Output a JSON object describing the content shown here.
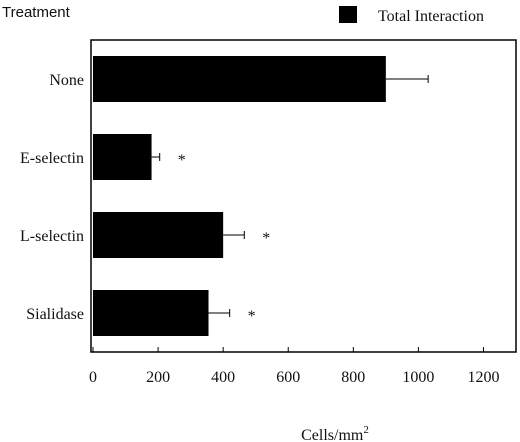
{
  "chart_data": {
    "type": "bar",
    "orientation": "horizontal",
    "categories": [
      "None",
      "E-selectin",
      "L-selectin",
      "Sialidase"
    ],
    "series": [
      {
        "name": "Total Interaction",
        "values": [
          900,
          180,
          400,
          355
        ],
        "error": [
          130,
          25,
          65,
          65
        ],
        "annotations": [
          "",
          "*",
          "*",
          "*"
        ]
      }
    ],
    "color": "#000000",
    "y_axis_title": "Treatment",
    "x_axis_title_prefix": "Cells/mm",
    "x_axis_title_sup": "2",
    "x_ticks": [
      "0",
      "200",
      "400",
      "600",
      "800",
      "1000",
      "1200"
    ],
    "xlim": [
      0,
      1300
    ],
    "grid": false,
    "legend_position": "top-right"
  }
}
